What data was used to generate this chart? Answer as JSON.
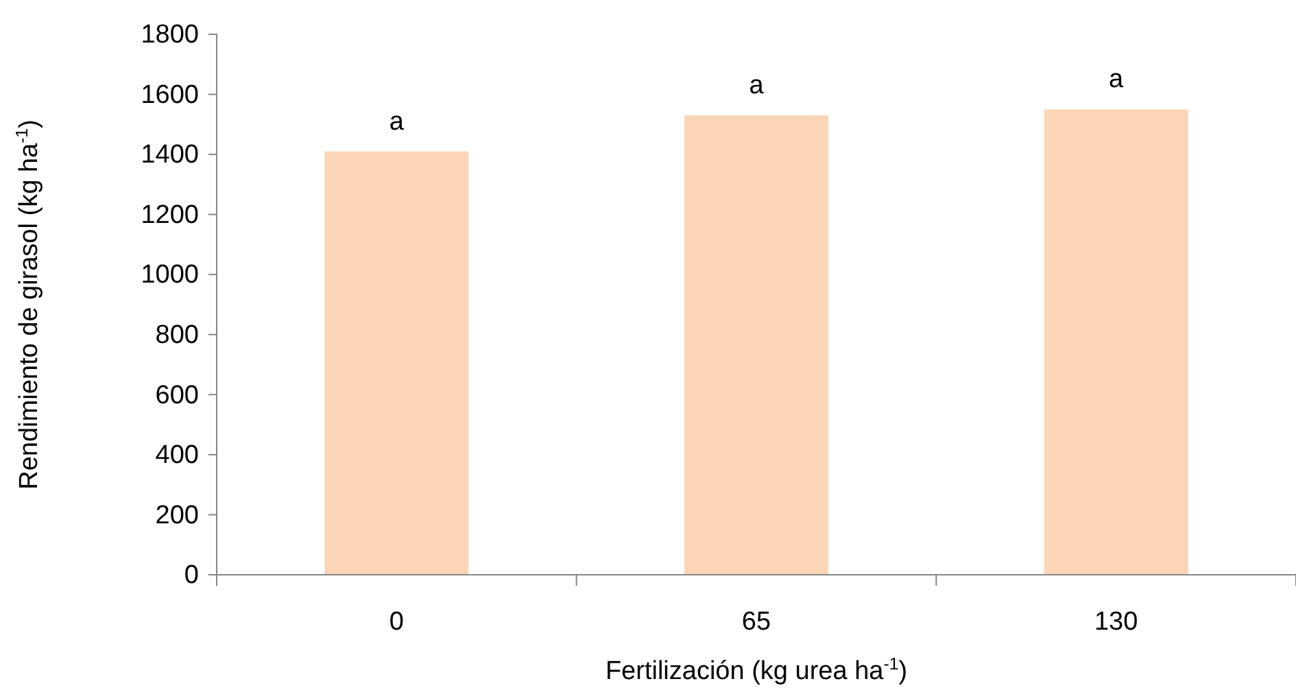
{
  "chart_data": {
    "type": "bar",
    "xlabel": "Fertilización (kg urea ha$^{-1}$)",
    "ylabel": "Rendimiento  de girasol (kg ha$^{-1}$)",
    "categories": [
      "0",
      "65",
      "130"
    ],
    "values": [
      1410,
      1530,
      1550
    ],
    "color": "#fbd5b5",
    "ylim": [
      0,
      1800
    ],
    "yticks": [
      0,
      200,
      400,
      600,
      800,
      1000,
      1200,
      1400,
      1600,
      1800
    ],
    "grid": false,
    "annotations": [
      {
        "text": "a",
        "x": "0",
        "y": 1410
      },
      {
        "text": "a",
        "x": "65",
        "y": 1530
      },
      {
        "text": "a",
        "x": "130",
        "y": 1550
      }
    ]
  }
}
